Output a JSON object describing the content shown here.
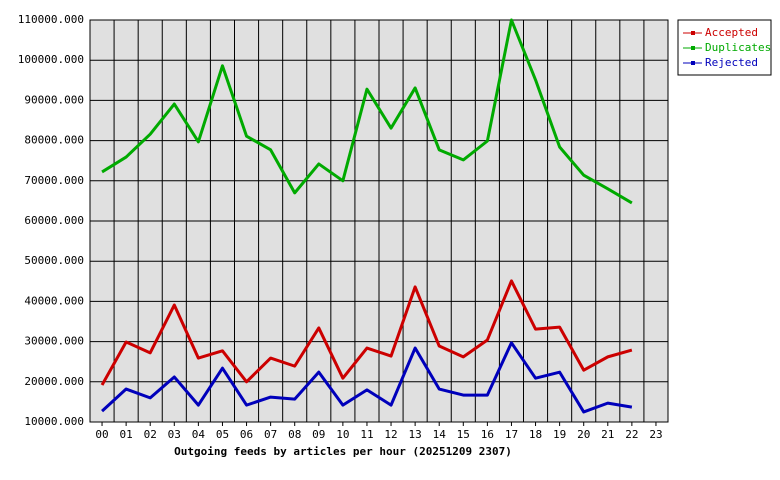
{
  "chart_data": {
    "type": "line",
    "xlabel": "Outgoing feeds by articles per hour (20251209 2307)",
    "categories": [
      "00",
      "01",
      "02",
      "03",
      "04",
      "05",
      "06",
      "07",
      "08",
      "09",
      "10",
      "11",
      "12",
      "13",
      "14",
      "15",
      "16",
      "17",
      "18",
      "19",
      "20",
      "21",
      "22",
      "23"
    ],
    "series": [
      {
        "name": "Accepted",
        "color": "#cc0000",
        "values": [
          19200,
          29900,
          27200,
          39100,
          25900,
          27700,
          20000,
          25900,
          23900,
          33400,
          20900,
          28400,
          26400,
          43600,
          28900,
          26200,
          30400,
          45100,
          33100,
          33600,
          22900,
          26200,
          27900,
          null
        ]
      },
      {
        "name": "Duplicates",
        "color": "#00aa00",
        "values": [
          72200,
          75900,
          81600,
          89100,
          79700,
          98600,
          81100,
          77700,
          67000,
          74200,
          70000,
          92800,
          83100,
          93100,
          77700,
          75200,
          79900,
          110000,
          95100,
          78400,
          71400,
          68000,
          64500,
          null
        ]
      },
      {
        "name": "Rejected",
        "color": "#0000bb",
        "values": [
          12700,
          18200,
          16000,
          21200,
          14200,
          23400,
          14200,
          16200,
          15700,
          22400,
          14200,
          18000,
          14200,
          28400,
          18200,
          16700,
          16700,
          29700,
          20900,
          22400,
          12500,
          14700,
          13700,
          null
        ]
      }
    ],
    "ylim": [
      10000,
      110000
    ],
    "yticks": [
      {
        "value": 10000,
        "label": "10000.000"
      },
      {
        "value": 20000,
        "label": "20000.000"
      },
      {
        "value": 30000,
        "label": "30000.000"
      },
      {
        "value": 40000,
        "label": "40000.000"
      },
      {
        "value": 50000,
        "label": "50000.000"
      },
      {
        "value": 60000,
        "label": "60000.000"
      },
      {
        "value": 70000,
        "label": "70000.000"
      },
      {
        "value": 80000,
        "label": "80000.000"
      },
      {
        "value": 90000,
        "label": "90000.000"
      },
      {
        "value": 100000,
        "label": "100000.000"
      },
      {
        "value": 110000,
        "label": "110000.000"
      }
    ],
    "grid": true,
    "legend": "upper right"
  }
}
